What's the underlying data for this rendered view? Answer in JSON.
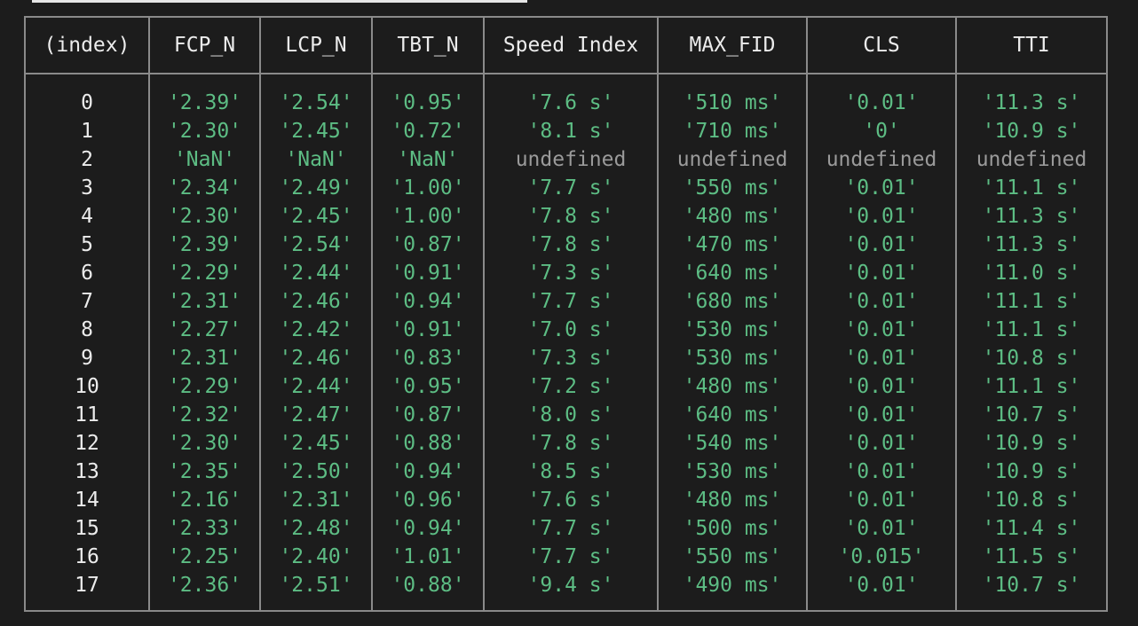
{
  "colors": {
    "background": "#1c1c1c",
    "border": "#8a8a8a",
    "string_value": "#5dbd84",
    "undefined_value": "#9a9a9a",
    "header_text": "#ececec"
  },
  "table": {
    "columns": [
      "(index)",
      "FCP_N",
      "LCP_N",
      "TBT_N",
      "Speed Index",
      "MAX_FID",
      "CLS",
      "TTI"
    ],
    "rows": [
      [
        "0",
        "'2.39'",
        "'2.54'",
        "'0.95'",
        "'7.6 s'",
        "'510 ms'",
        "'0.01'",
        "'11.3 s'"
      ],
      [
        "1",
        "'2.30'",
        "'2.45'",
        "'0.72'",
        "'8.1 s'",
        "'710 ms'",
        "'0'",
        "'10.9 s'"
      ],
      [
        "2",
        "'NaN'",
        "'NaN'",
        "'NaN'",
        "undefined",
        "undefined",
        "undefined",
        "undefined"
      ],
      [
        "3",
        "'2.34'",
        "'2.49'",
        "'1.00'",
        "'7.7 s'",
        "'550 ms'",
        "'0.01'",
        "'11.1 s'"
      ],
      [
        "4",
        "'2.30'",
        "'2.45'",
        "'1.00'",
        "'7.8 s'",
        "'480 ms'",
        "'0.01'",
        "'11.3 s'"
      ],
      [
        "5",
        "'2.39'",
        "'2.54'",
        "'0.87'",
        "'7.8 s'",
        "'470 ms'",
        "'0.01'",
        "'11.3 s'"
      ],
      [
        "6",
        "'2.29'",
        "'2.44'",
        "'0.91'",
        "'7.3 s'",
        "'640 ms'",
        "'0.01'",
        "'11.0 s'"
      ],
      [
        "7",
        "'2.31'",
        "'2.46'",
        "'0.94'",
        "'7.7 s'",
        "'680 ms'",
        "'0.01'",
        "'11.1 s'"
      ],
      [
        "8",
        "'2.27'",
        "'2.42'",
        "'0.91'",
        "'7.0 s'",
        "'530 ms'",
        "'0.01'",
        "'11.1 s'"
      ],
      [
        "9",
        "'2.31'",
        "'2.46'",
        "'0.83'",
        "'7.3 s'",
        "'530 ms'",
        "'0.01'",
        "'10.8 s'"
      ],
      [
        "10",
        "'2.29'",
        "'2.44'",
        "'0.95'",
        "'7.2 s'",
        "'480 ms'",
        "'0.01'",
        "'11.1 s'"
      ],
      [
        "11",
        "'2.32'",
        "'2.47'",
        "'0.87'",
        "'8.0 s'",
        "'640 ms'",
        "'0.01'",
        "'10.7 s'"
      ],
      [
        "12",
        "'2.30'",
        "'2.45'",
        "'0.88'",
        "'7.8 s'",
        "'540 ms'",
        "'0.01'",
        "'10.9 s'"
      ],
      [
        "13",
        "'2.35'",
        "'2.50'",
        "'0.94'",
        "'8.5 s'",
        "'530 ms'",
        "'0.01'",
        "'10.9 s'"
      ],
      [
        "14",
        "'2.16'",
        "'2.31'",
        "'0.96'",
        "'7.6 s'",
        "'480 ms'",
        "'0.01'",
        "'10.8 s'"
      ],
      [
        "15",
        "'2.33'",
        "'2.48'",
        "'0.94'",
        "'7.7 s'",
        "'500 ms'",
        "'0.01'",
        "'11.4 s'"
      ],
      [
        "16",
        "'2.25'",
        "'2.40'",
        "'1.01'",
        "'7.7 s'",
        "'550 ms'",
        "'0.015'",
        "'11.5 s'"
      ],
      [
        "17",
        "'2.36'",
        "'2.51'",
        "'0.88'",
        "'9.4 s'",
        "'490 ms'",
        "'0.01'",
        "'10.7 s'"
      ]
    ]
  }
}
